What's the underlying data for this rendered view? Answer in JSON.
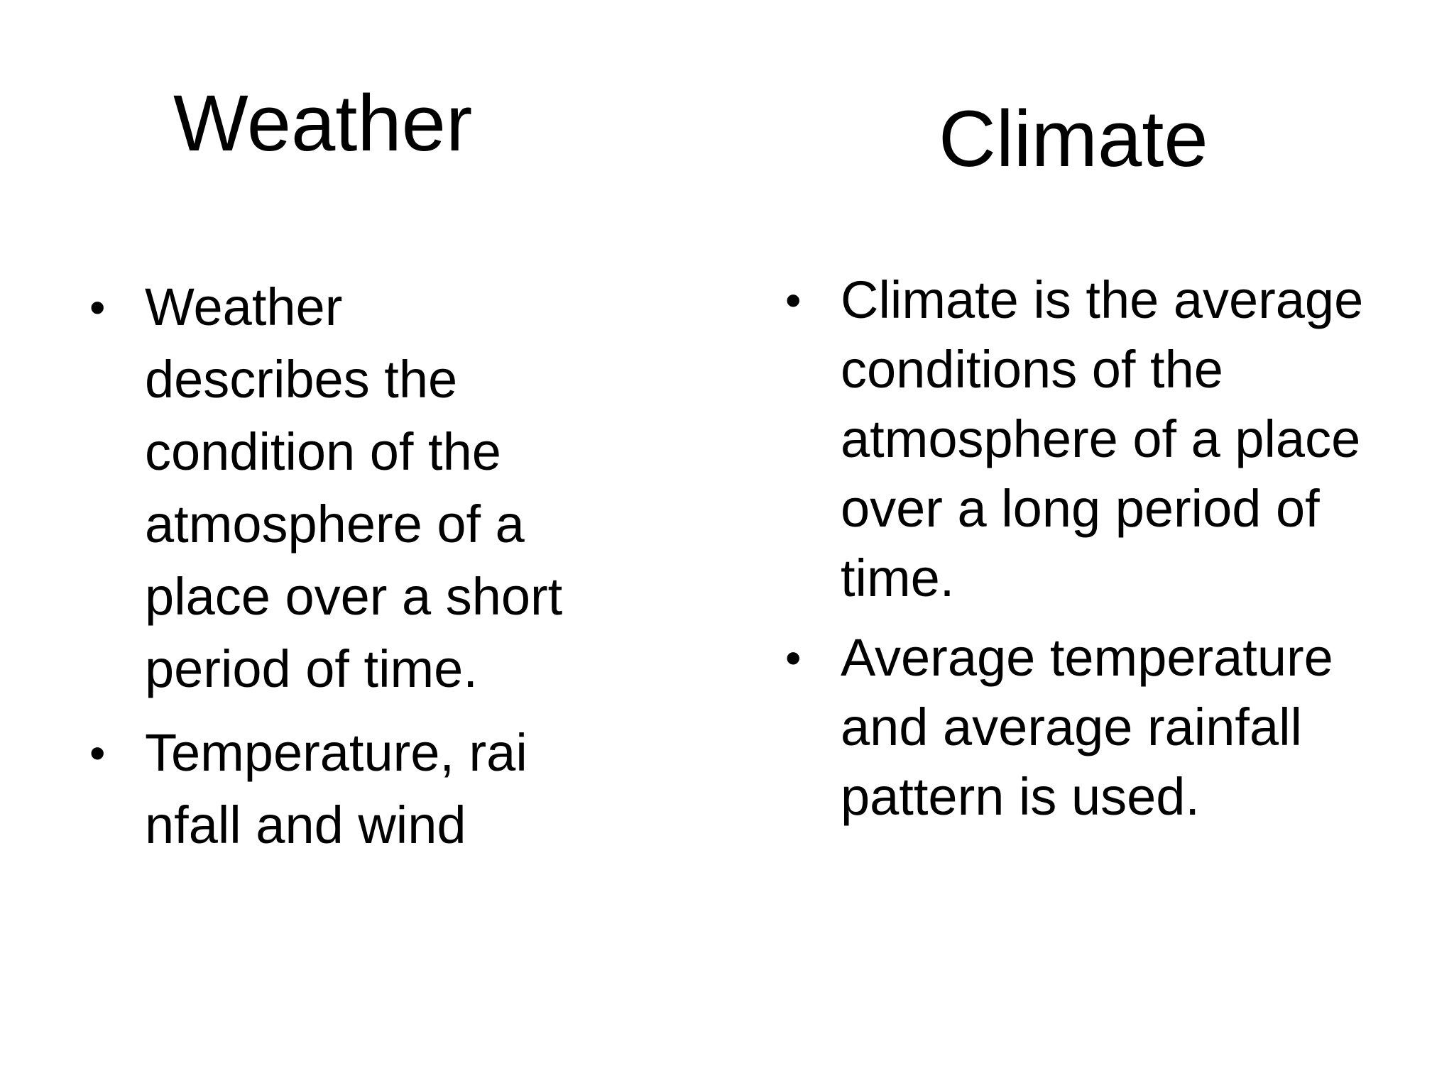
{
  "slide": {
    "left_column": {
      "title": "Weather",
      "bullets": [
        "Weather describes the condition of the atmosphere of a place over a short period of time.",
        "Temperature, rai nfall and wind"
      ]
    },
    "right_column": {
      "title": "Climate",
      "bullets": [
        "Climate is the average conditions of the atmosphere of a place over a long period of time.",
        "Average temperature and average rainfall pattern is used."
      ]
    },
    "bullet_glyph": "•",
    "text_color": "#000000",
    "background_color": "#ffffff"
  }
}
